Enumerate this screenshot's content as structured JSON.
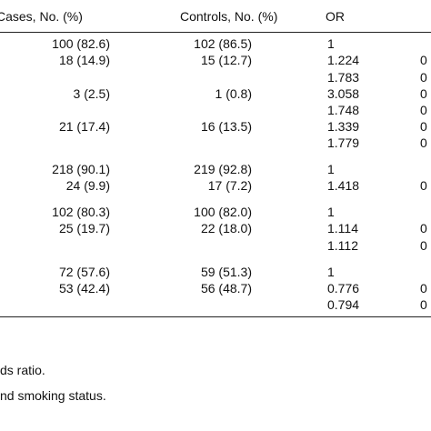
{
  "table": {
    "header": [
      "Cases, No. (%)",
      "Controls, No. (%)",
      "OR"
    ],
    "rows": [
      {
        "cases": "100 (82.6)",
        "controls": "102 (86.5)",
        "or": "1"
      },
      {
        "cases": "18 (14.9)",
        "controls": "15 (12.7)",
        "or": "1.224",
        "p": "0"
      },
      {
        "or": "1.783",
        "p": "0"
      },
      {
        "cases": "3 (2.5)",
        "controls": "1 (0.8)",
        "or": "3.058",
        "p": "0"
      },
      {
        "or": "1.748",
        "p": "0"
      },
      {
        "cases": "21 (17.4)",
        "controls": "16 (13.5)",
        "or": "1.339",
        "p": "0"
      },
      {
        "or": "1.779",
        "p": "0"
      },
      {
        "cases": "218 (90.1)",
        "controls": "219 (92.8)",
        "or": "1"
      },
      {
        "cases": "24 (9.9)",
        "controls": "17 (7.2)",
        "or": "1.418",
        "p": "0"
      },
      {
        "cases": "102 (80.3)",
        "controls": "100 (82.0)",
        "or": "1"
      },
      {
        "cases": "25 (19.7)",
        "controls": "22 (18.0)",
        "or": "1.114",
        "p": "0"
      },
      {
        "or": "1.112",
        "p": "0"
      },
      {
        "cases": "72 (57.6)",
        "controls": "59 (51.3)",
        "or": "1"
      },
      {
        "cases": "53 (42.4)",
        "controls": "56 (48.7)",
        "or": "0.776",
        "p": "0"
      },
      {
        "or": "0.794",
        "p": "0"
      }
    ],
    "notes": [
      "ds ratio.",
      "nd smoking status."
    ]
  }
}
